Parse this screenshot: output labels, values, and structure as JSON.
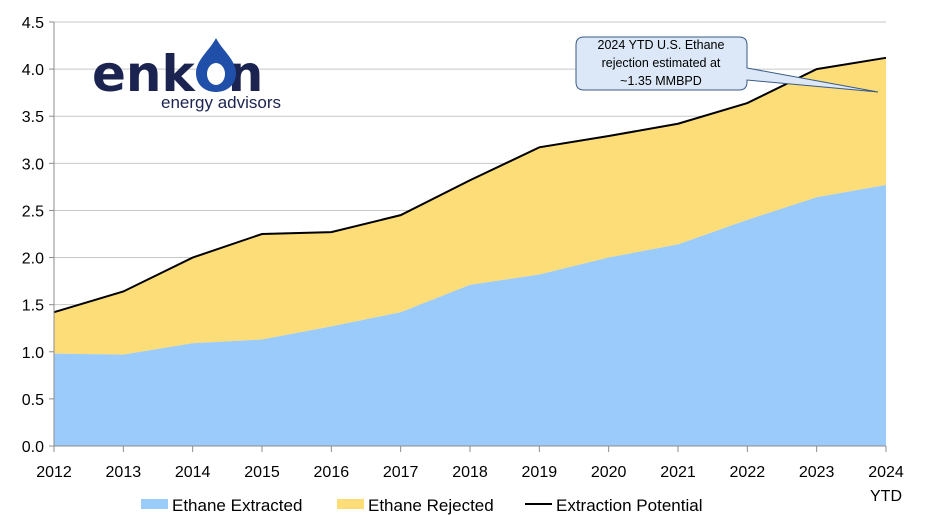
{
  "logo": {
    "name": "enkon",
    "subtitle": "energy advisors",
    "drop_color": "#1f4fa8"
  },
  "callout": {
    "lines": [
      "2024 YTD U.S. Ethane",
      "rejection estimated at",
      "~1.35 MMBPD"
    ],
    "fill": "#dce8f7",
    "stroke": "#3a5a84"
  },
  "chart_data": {
    "type": "area",
    "x": [
      "2012",
      "2013",
      "2014",
      "2015",
      "2016",
      "2017",
      "2018",
      "2019",
      "2020",
      "2021",
      "2022",
      "2023",
      "2024"
    ],
    "x_tick_labels": [
      "2012",
      "2013",
      "2014",
      "2015",
      "2016",
      "2017",
      "2018",
      "2019",
      "2020",
      "2021",
      "2022",
      "2023",
      "2024"
    ],
    "x_tick_sublabel": "YTD",
    "ylim": [
      0,
      4.5
    ],
    "y_ticks": [
      "0.0",
      "0.5",
      "1.0",
      "1.5",
      "2.0",
      "2.5",
      "3.0",
      "3.5",
      "4.0",
      "4.5"
    ],
    "grid": true,
    "legend_position": "bottom",
    "series": [
      {
        "name": "Ethane Extracted",
        "kind": "area",
        "color": "#9acbfb",
        "values": [
          0.98,
          0.97,
          1.09,
          1.13,
          1.27,
          1.42,
          1.71,
          1.82,
          2.0,
          2.14,
          2.4,
          2.64,
          2.77
        ]
      },
      {
        "name": "Ethane Rejected",
        "kind": "area-stacked",
        "color": "#fddd78",
        "values": [
          0.44,
          0.67,
          0.91,
          1.12,
          1.0,
          1.03,
          1.11,
          1.35,
          1.29,
          1.28,
          1.24,
          1.36,
          1.35
        ]
      },
      {
        "name": "Extraction Potential",
        "kind": "line",
        "color": "#000000",
        "values": [
          1.42,
          1.64,
          2.0,
          2.25,
          2.27,
          2.45,
          2.82,
          3.17,
          3.29,
          3.42,
          3.64,
          4.0,
          4.12
        ]
      }
    ]
  }
}
